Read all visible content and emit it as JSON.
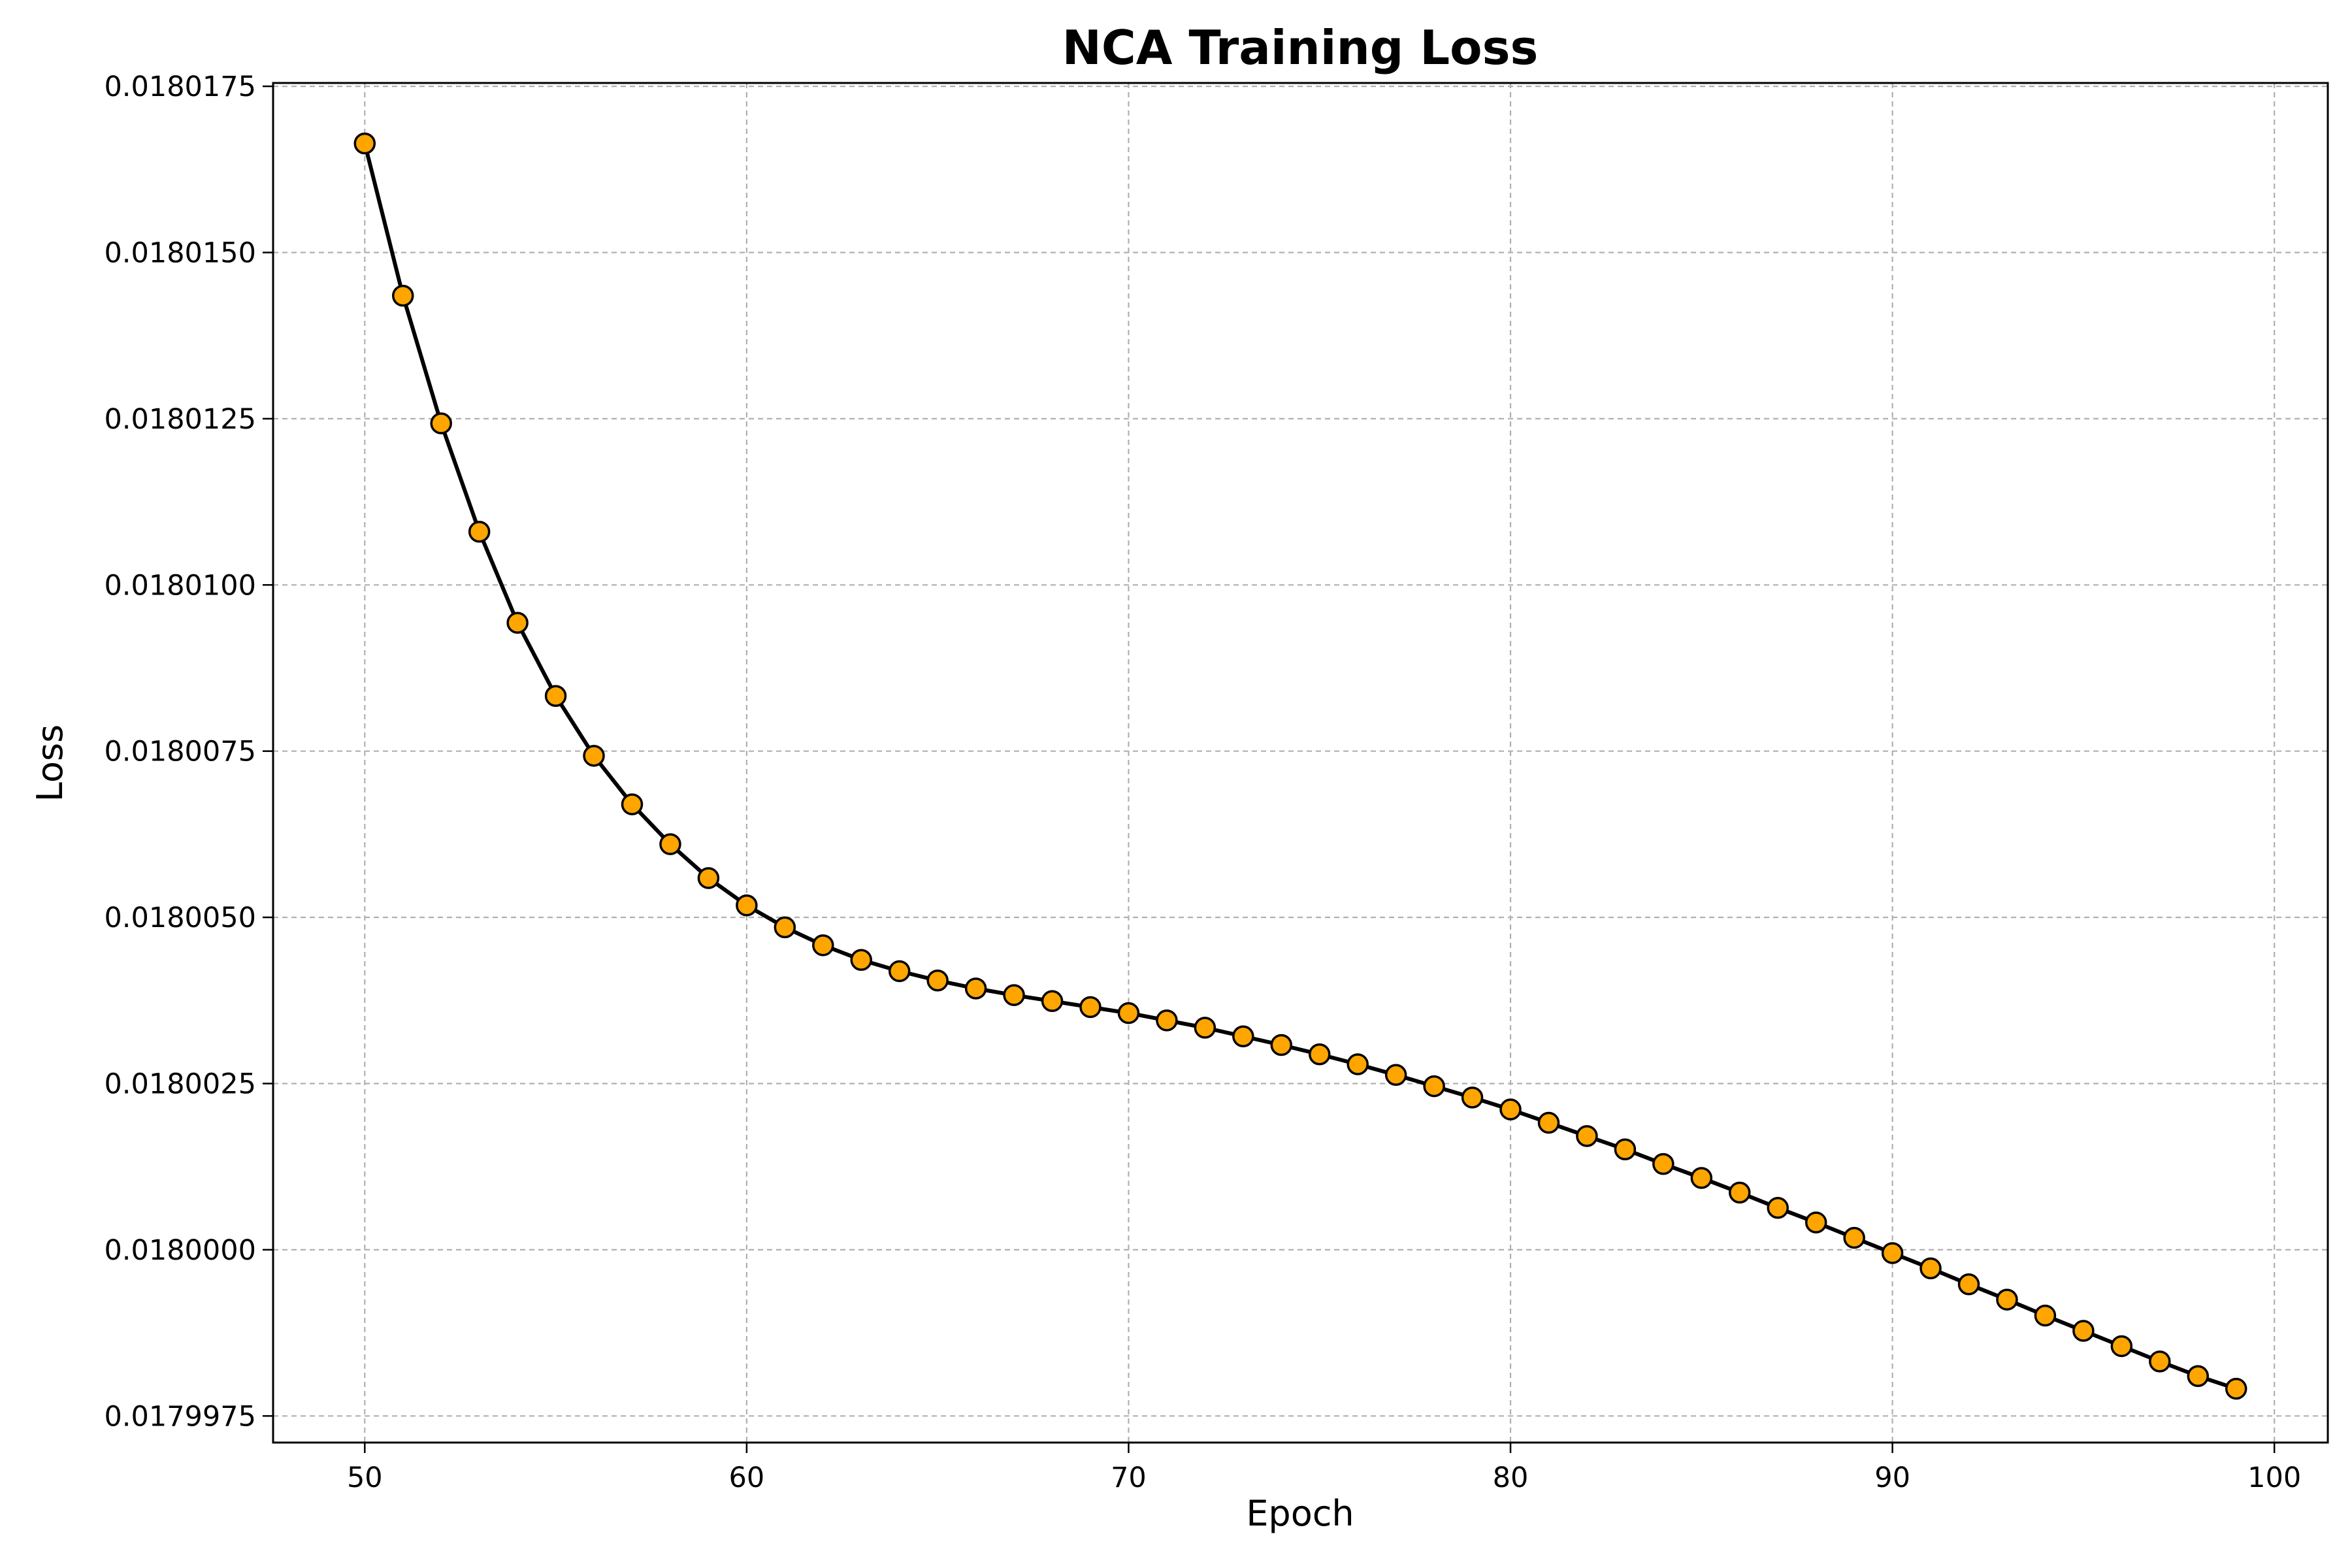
{
  "chart_data": {
    "type": "line",
    "title": "NCA Training Loss",
    "xlabel": "Epoch",
    "ylabel": "Loss",
    "xlim": [
      47.6,
      101.4
    ],
    "ylim": [
      0.0179971,
      0.01801755
    ],
    "xticks": [
      50,
      60,
      70,
      80,
      90,
      100
    ],
    "yticks": [
      0.0179975,
      0.018,
      0.0180025,
      0.018005,
      0.0180075,
      0.01801,
      0.0180125,
      0.018015,
      0.0180175
    ],
    "ytick_labels": [
      "0.0179975",
      "0.0180000",
      "0.0180025",
      "0.0180050",
      "0.0180075",
      "0.0180100",
      "0.0180125",
      "0.0180150",
      "0.0180175"
    ],
    "grid": true,
    "line_color": "#000000",
    "marker_color": "#ffa500",
    "marker_edge_color": "#000000",
    "x": [
      50,
      51,
      52,
      53,
      54,
      55,
      56,
      57,
      58,
      59,
      60,
      61,
      62,
      63,
      64,
      65,
      66,
      67,
      68,
      69,
      70,
      71,
      72,
      73,
      74,
      75,
      76,
      77,
      78,
      79,
      80,
      81,
      82,
      83,
      84,
      85,
      86,
      87,
      88,
      89,
      90,
      91,
      92,
      93,
      94,
      95,
      96,
      97,
      98,
      99
    ],
    "y": [
      0.01801664,
      0.01801435,
      0.01801243,
      0.0180108,
      0.01800943,
      0.01800833,
      0.01800743,
      0.0180067,
      0.0180061,
      0.01800559,
      0.01800518,
      0.01800485,
      0.01800458,
      0.01800436,
      0.01800419,
      0.01800405,
      0.01800393,
      0.01800383,
      0.01800374,
      0.01800365,
      0.01800356,
      0.01800345,
      0.01800334,
      0.01800321,
      0.01800308,
      0.01800294,
      0.01800279,
      0.01800263,
      0.01800246,
      0.01800229,
      0.01800211,
      0.01800191,
      0.01800171,
      0.01800151,
      0.01800129,
      0.01800108,
      0.01800086,
      0.01800063,
      0.01800041,
      0.01800018,
      0.01799995,
      0.01799972,
      0.01799948,
      0.01799925,
      0.01799901,
      0.01799878,
      0.01799855,
      0.01799832,
      0.0179981,
      0.01799791
    ]
  }
}
